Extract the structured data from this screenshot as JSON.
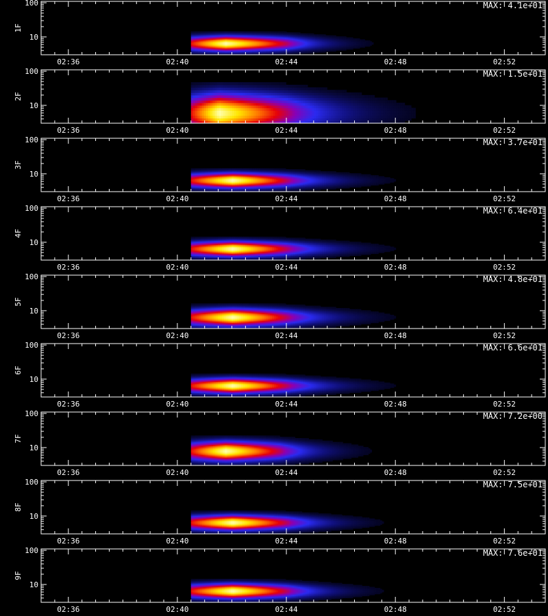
{
  "chart_data": {
    "type": "heatmap",
    "x_tick_labels": [
      "02:36",
      "02:40",
      "02:44",
      "02:48",
      "02:52"
    ],
    "y_tick_labels": [
      "10",
      "100"
    ],
    "y_scale": "log",
    "y_range": [
      3,
      110
    ],
    "x_range_minutes": [
      "02:35:00",
      "02:53:30"
    ],
    "colormap": [
      "#000000",
      "#10107a",
      "#2a2af0",
      "#8a00b4",
      "#e6000a",
      "#ff7a00",
      "#ffe600",
      "#ffffb0"
    ],
    "panels": [
      {
        "name": "1F",
        "max_label": "MAX: 4.1e+01",
        "burst": {
          "start": "02:40:30",
          "peak": "02:41:45",
          "end": "02:44:00",
          "tail_end": "02:48:00",
          "freq_center": 6.5,
          "freq_spread": 0.35,
          "peak_rel": 1.0
        }
      },
      {
        "name": "2F",
        "max_label": "MAX: 1.5e+01",
        "burst": {
          "start": "02:40:30",
          "peak": "02:41:30",
          "end": "02:44:00",
          "tail_end": "02:50:00",
          "freq_center": 6.0,
          "freq_spread": 0.9,
          "peak_rel": 1.0
        }
      },
      {
        "name": "3F",
        "max_label": "MAX: 3.7e+01",
        "burst": {
          "start": "02:40:30",
          "peak": "02:42:00",
          "end": "02:44:00",
          "tail_end": "02:49:00",
          "freq_center": 6.5,
          "freq_spread": 0.35,
          "peak_rel": 1.0
        }
      },
      {
        "name": "4F",
        "max_label": "MAX: 6.4e+01",
        "burst": {
          "start": "02:40:30",
          "peak": "02:42:00",
          "end": "02:44:00",
          "tail_end": "02:49:00",
          "freq_center": 6.5,
          "freq_spread": 0.35,
          "peak_rel": 1.0
        }
      },
      {
        "name": "5F",
        "max_label": "MAX: 4.8e+01",
        "burst": {
          "start": "02:40:30",
          "peak": "02:42:00",
          "end": "02:44:00",
          "tail_end": "02:49:00",
          "freq_center": 6.5,
          "freq_spread": 0.4,
          "peak_rel": 1.0
        }
      },
      {
        "name": "6F",
        "max_label": "MAX: 6.6e+01",
        "burst": {
          "start": "02:40:30",
          "peak": "02:42:00",
          "end": "02:44:00",
          "tail_end": "02:49:00",
          "freq_center": 6.5,
          "freq_spread": 0.35,
          "peak_rel": 1.0
        }
      },
      {
        "name": "7F",
        "max_label": "MAX: 7.2e+00",
        "burst": {
          "start": "02:40:30",
          "peak": "02:41:45",
          "end": "02:43:45",
          "tail_end": "02:48:00",
          "freq_center": 8.0,
          "freq_spread": 0.45,
          "peak_rel": 1.0
        }
      },
      {
        "name": "8F",
        "max_label": "MAX: 7.5e+01",
        "burst": {
          "start": "02:40:30",
          "peak": "02:42:00",
          "end": "02:44:00",
          "tail_end": "02:48:30",
          "freq_center": 6.5,
          "freq_spread": 0.35,
          "peak_rel": 1.0
        }
      },
      {
        "name": "9F",
        "max_label": "MAX: 7.6e+01",
        "burst": {
          "start": "02:40:30",
          "peak": "02:42:00",
          "end": "02:44:00",
          "tail_end": "02:48:30",
          "freq_center": 6.5,
          "freq_spread": 0.35,
          "peak_rel": 1.0
        }
      }
    ]
  }
}
